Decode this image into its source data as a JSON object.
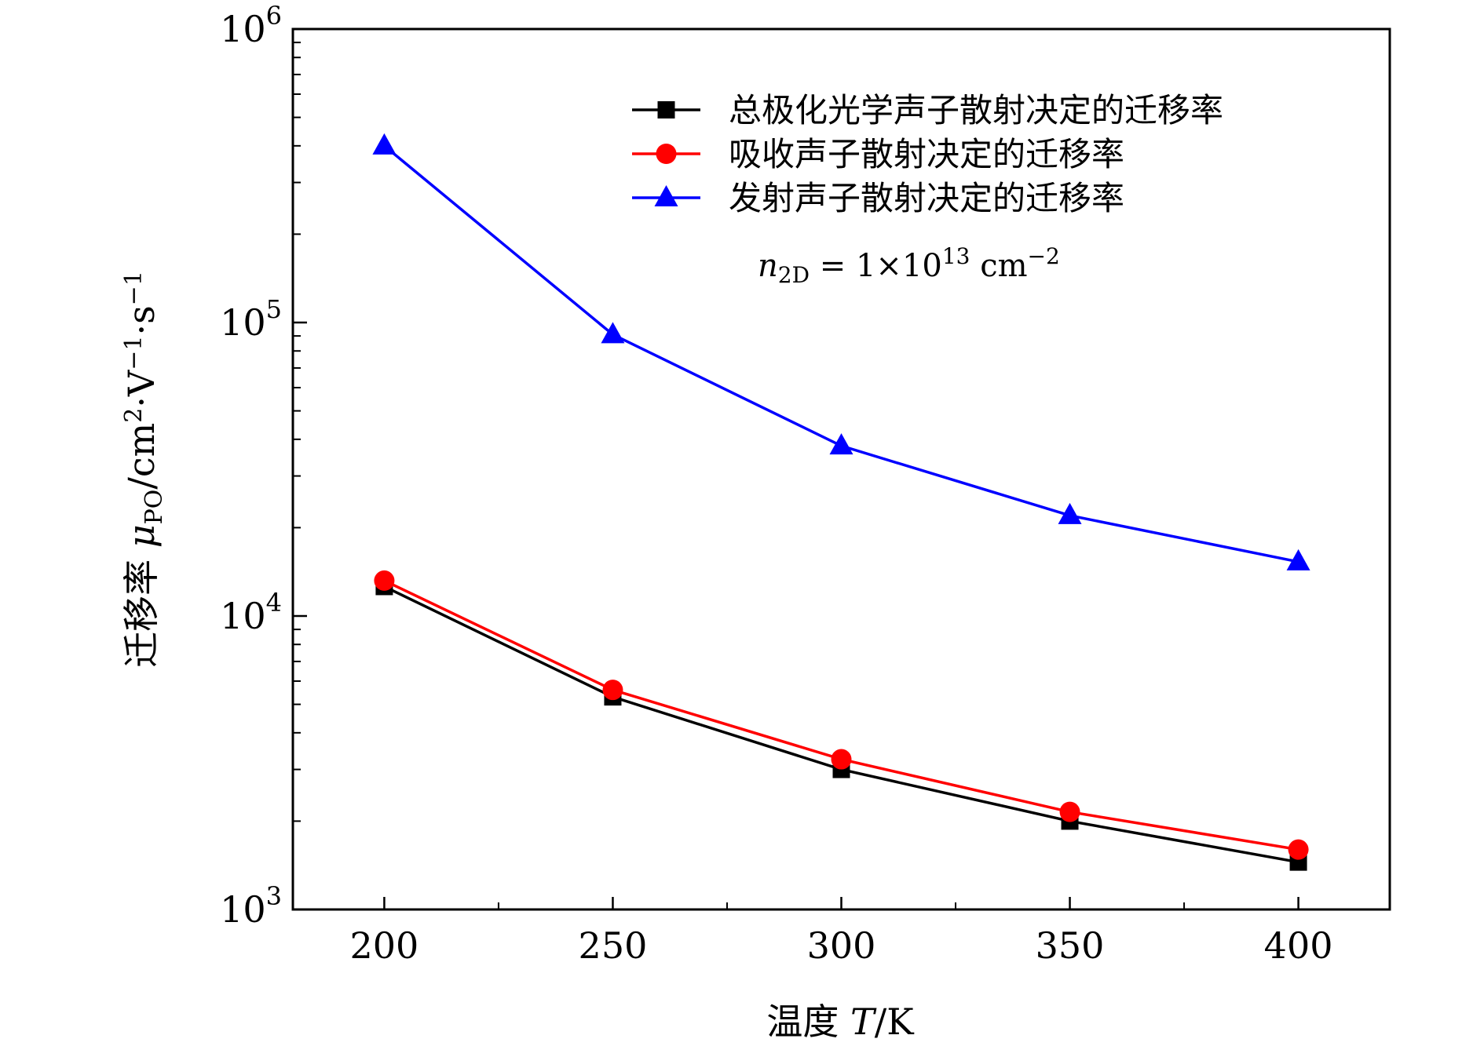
{
  "chart_data": {
    "type": "line",
    "title": "",
    "xlabel": "温度 T/K",
    "ylabel": "迁移率 μPO/cm2·V−1·s−1",
    "xlim": [
      180,
      420
    ],
    "ylim": [
      1000,
      1000000
    ],
    "yscale": "log",
    "x": [
      200,
      250,
      300,
      350,
      400
    ],
    "xticks": [
      200,
      250,
      300,
      350,
      400
    ],
    "xtick_labels": [
      "200",
      "250",
      "300",
      "350",
      "400"
    ],
    "yticks": [
      1000,
      10000,
      100000,
      1000000
    ],
    "ytick_labels": [
      {
        "base": "10",
        "exp": "3"
      },
      {
        "base": "10",
        "exp": "4"
      },
      {
        "base": "10",
        "exp": "5"
      },
      {
        "base": "10",
        "exp": "6"
      }
    ],
    "series": [
      {
        "name": "总极化光学声子散射决定的迁移率",
        "color": "#000000",
        "marker": "square",
        "values": [
          12600,
          5300,
          3000,
          2000,
          1450
        ]
      },
      {
        "name": "吸收声子散射决定的迁移率",
        "color": "#ff0000",
        "marker": "circle",
        "values": [
          13200,
          5600,
          3250,
          2150,
          1600
        ]
      },
      {
        "name": "发射声子散射决定的迁移率",
        "color": "#0000ff",
        "marker": "triangle",
        "values": [
          400000,
          91000,
          38000,
          22000,
          15300
        ]
      }
    ],
    "legend_position": "top-right",
    "annotation": "n2D = 1×10^13 cm^−2",
    "grid": false
  }
}
